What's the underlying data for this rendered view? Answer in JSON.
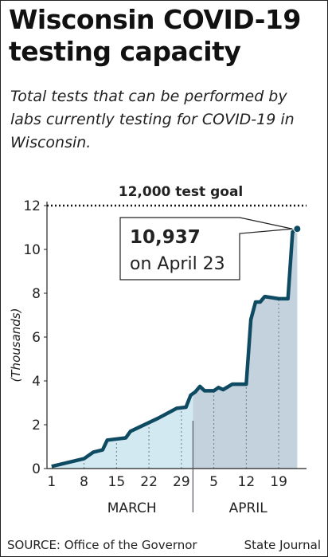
{
  "chart_data": {
    "type": "area",
    "title": "Wisconsin COVID-19 testing capacity",
    "subtitle": "Total tests that can be performed by labs currently testing for COVID-19 in Wisconsin.",
    "ylabel": "(Thousands)",
    "x": [
      1,
      8,
      10,
      12,
      13,
      17,
      18,
      24,
      28,
      30,
      31,
      32,
      33,
      34,
      36,
      37,
      38,
      40,
      43,
      44,
      45,
      46,
      47,
      50,
      52,
      53,
      54
    ],
    "values": [
      0.1,
      0.45,
      0.75,
      0.85,
      1.3,
      1.4,
      1.7,
      2.3,
      2.75,
      2.8,
      3.35,
      3.5,
      3.75,
      3.55,
      3.55,
      3.7,
      3.6,
      3.85,
      3.85,
      6.8,
      7.6,
      7.6,
      7.85,
      7.75,
      7.75,
      10.8,
      10.937
    ],
    "color": "#0e4a62",
    "area_colors": [
      "#d3e9f1",
      "#c3d2dd"
    ],
    "xlim": [
      0,
      56
    ],
    "xticks": [
      1,
      8,
      15,
      22,
      29,
      {
        "value": 36,
        "label": "5"
      },
      {
        "value": 43,
        "label": "12"
      },
      {
        "value": 50,
        "label": "19"
      }
    ],
    "month_labels": [
      "MARCH",
      "APRIL"
    ],
    "ylim": [
      0,
      12
    ],
    "yticks": [
      0,
      2,
      4,
      6,
      8,
      10,
      12
    ],
    "goal": {
      "value": 12,
      "label": "12,000 test goal"
    },
    "annotation": {
      "value_label": "10,937",
      "text": "on April 23"
    },
    "source": "SOURCE: Office of the Governor",
    "credit": "State Journal"
  }
}
